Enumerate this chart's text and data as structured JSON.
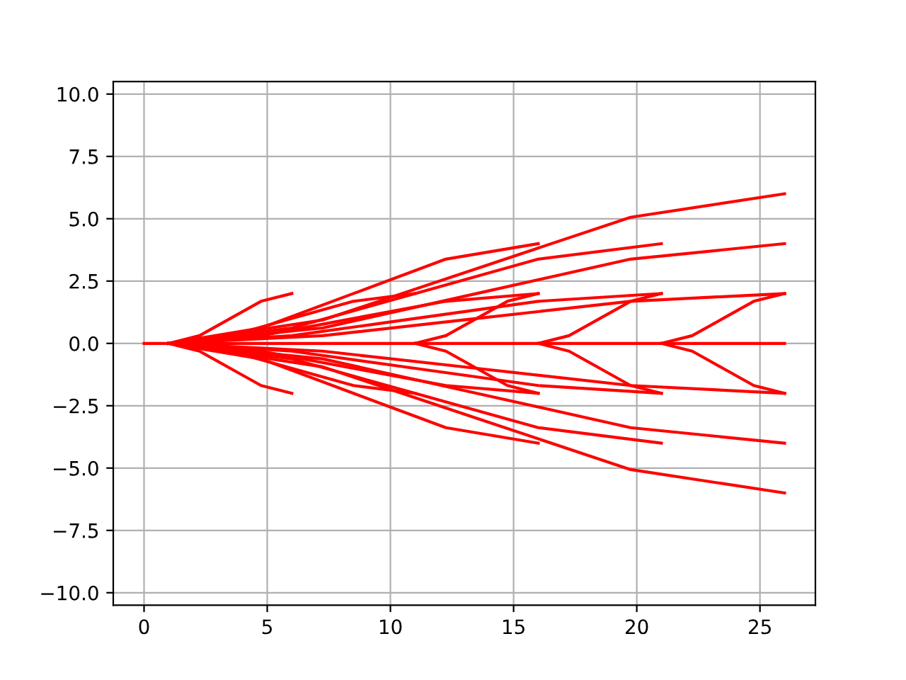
{
  "chart_data": {
    "type": "line",
    "color": "#ff0000",
    "grid": true,
    "marker": "none",
    "line_style": "solid",
    "xlim": [
      -1.25,
      27.25
    ],
    "xticks": [
      0,
      5,
      10,
      15,
      20,
      25
    ],
    "ylim": [
      -10.5,
      10.5
    ],
    "yticks": [
      {
        "value": -10,
        "label": "−10.0"
      },
      {
        "value": -7.5,
        "label": "−7.5"
      },
      {
        "value": -5,
        "label": "−5.0"
      },
      {
        "value": -2.5,
        "label": "−2.5"
      },
      {
        "value": 0,
        "label": "0.0"
      },
      {
        "value": 2.5,
        "label": "2.5"
      },
      {
        "value": 5,
        "label": "5.0"
      },
      {
        "value": 7.5,
        "label": "7.5"
      },
      {
        "value": 10,
        "label": "10.0"
      }
    ],
    "series": [
      {
        "x": [
          1,
          2.25,
          3.5,
          4.75,
          6
        ],
        "values": [
          0,
          0.31,
          1,
          1.69,
          2
        ]
      },
      {
        "x": [
          1,
          2.25,
          3.5,
          4.75,
          6
        ],
        "values": [
          0,
          -0.31,
          -1,
          -1.69,
          -2
        ]
      },
      {
        "x": [
          1,
          3.5,
          6,
          8.5,
          11
        ],
        "values": [
          0,
          0.31,
          1,
          1.69,
          2
        ]
      },
      {
        "x": [
          1,
          3.5,
          6,
          8.5,
          11
        ],
        "values": [
          0,
          -0.31,
          -1,
          -1.69,
          -2
        ]
      },
      {
        "x": [
          1,
          4.75,
          8.5,
          12.25,
          16
        ],
        "values": [
          0,
          0.62,
          2,
          3.38,
          4
        ]
      },
      {
        "x": [
          1,
          4.75,
          8.5,
          12.25,
          16
        ],
        "values": [
          0,
          -0.62,
          -2,
          -3.38,
          -4
        ]
      },
      {
        "x": [
          1,
          4.75,
          8.5,
          12.25,
          16
        ],
        "values": [
          0,
          0.31,
          1,
          1.69,
          2
        ]
      },
      {
        "x": [
          1,
          4.75,
          8.5,
          12.25,
          16
        ],
        "values": [
          0,
          -0.31,
          -1,
          -1.69,
          -2
        ]
      },
      {
        "x": [
          11,
          12.25,
          13.5,
          14.75,
          16
        ],
        "values": [
          0,
          0.31,
          1,
          1.69,
          2
        ]
      },
      {
        "x": [
          11,
          12.25,
          13.5,
          14.75,
          16
        ],
        "values": [
          0,
          -0.31,
          -1,
          -1.69,
          -2
        ]
      },
      {
        "x": [
          1,
          6,
          11,
          16,
          21
        ],
        "values": [
          0,
          0.62,
          2,
          3.38,
          4
        ]
      },
      {
        "x": [
          1,
          6,
          11,
          16,
          21
        ],
        "values": [
          0,
          -0.62,
          -2,
          -3.38,
          -4
        ]
      },
      {
        "x": [
          1,
          6,
          11,
          16,
          21
        ],
        "values": [
          0,
          0.31,
          1,
          1.69,
          2
        ]
      },
      {
        "x": [
          1,
          6,
          11,
          16,
          21
        ],
        "values": [
          0,
          -0.31,
          -1,
          -1.69,
          -2
        ]
      },
      {
        "x": [
          16,
          17.25,
          18.5,
          19.75,
          21
        ],
        "values": [
          0,
          0.31,
          1,
          1.69,
          2
        ]
      },
      {
        "x": [
          16,
          17.25,
          18.5,
          19.75,
          21
        ],
        "values": [
          0,
          -0.31,
          -1,
          -1.69,
          -2
        ]
      },
      {
        "x": [
          1,
          7.25,
          13.5,
          19.75,
          26
        ],
        "values": [
          0,
          0.94,
          3,
          5.06,
          6
        ]
      },
      {
        "x": [
          1,
          7.25,
          13.5,
          19.75,
          26
        ],
        "values": [
          0,
          -0.94,
          -3,
          -5.06,
          -6
        ]
      },
      {
        "x": [
          1,
          7.25,
          13.5,
          19.75,
          26
        ],
        "values": [
          0,
          0.62,
          2,
          3.38,
          4
        ]
      },
      {
        "x": [
          1,
          7.25,
          13.5,
          19.75,
          26
        ],
        "values": [
          0,
          -0.62,
          -2,
          -3.38,
          -4
        ]
      },
      {
        "x": [
          1,
          7.25,
          13.5,
          19.75,
          26
        ],
        "values": [
          0,
          0.31,
          1,
          1.69,
          2
        ]
      },
      {
        "x": [
          1,
          7.25,
          13.5,
          19.75,
          26
        ],
        "values": [
          0,
          -0.31,
          -1,
          -1.69,
          -2
        ]
      },
      {
        "x": [
          0,
          26
        ],
        "values": [
          0,
          0
        ]
      },
      {
        "x": [
          21,
          22.25,
          23.5,
          24.75,
          26
        ],
        "values": [
          0,
          0.31,
          1,
          1.69,
          2
        ]
      },
      {
        "x": [
          21,
          22.25,
          23.5,
          24.75,
          26
        ],
        "values": [
          0,
          -0.31,
          -1,
          -1.69,
          -2
        ]
      }
    ]
  }
}
